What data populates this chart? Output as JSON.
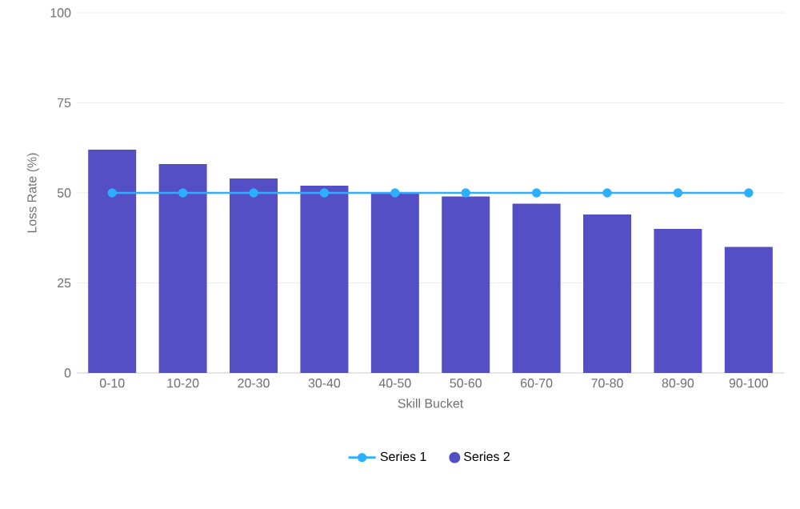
{
  "chart_data": {
    "type": "bar",
    "xlabel": "Skill Bucket",
    "ylabel": "Loss Rate (%)",
    "categories": [
      "0-10",
      "10-20",
      "20-30",
      "30-40",
      "40-50",
      "50-60",
      "60-70",
      "70-80",
      "80-90",
      "90-100"
    ],
    "series": [
      {
        "name": "Series 1",
        "type": "line",
        "color": "#2caffe",
        "marker": "circle",
        "values": [
          50,
          50,
          50,
          50,
          50,
          50,
          50,
          50,
          50,
          50
        ]
      },
      {
        "name": "Series 2",
        "color": "#544fc5",
        "values": [
          62,
          58,
          54,
          52,
          50,
          49,
          47,
          44,
          40,
          35
        ]
      }
    ],
    "ylim": [
      0,
      100
    ],
    "yticks": [
      0,
      25,
      50,
      75,
      100
    ],
    "grid": "y",
    "legend": "bottom"
  }
}
